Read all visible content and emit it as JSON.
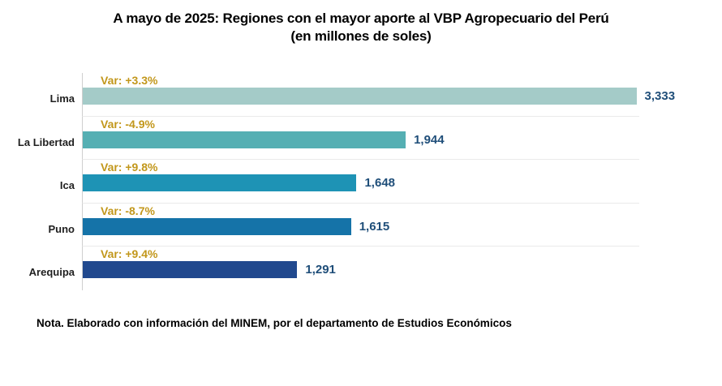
{
  "title": {
    "line1": "A mayo de 2025: Regiones con el mayor aporte al VBP Agropecuario del Perú",
    "line2": "(en millones de soles)"
  },
  "note": "Nota. Elaborado con información del MINEM, por el departamento de Estudios Económicos",
  "colors": {
    "variation_label": "#C2971B",
    "value_label": "#1F4E79",
    "category_label": "#1F1F1F",
    "axis_line": "#CFCFCF",
    "gridline": "#EAEAEA",
    "background": "#FFFFFF"
  },
  "chart_data": {
    "type": "bar",
    "orientation": "horizontal",
    "title": "A mayo de 2025: Regiones con el mayor aporte al VBP Agropecuario del Perú (en millones de soles)",
    "xlabel": "",
    "ylabel": "",
    "unit": "millones de soles",
    "categories": [
      "Lima",
      "La Libertad",
      "Ica",
      "Puno",
      "Arequipa"
    ],
    "values": [
      3333,
      1944,
      1648,
      1615,
      1291
    ],
    "value_labels": [
      "3,333",
      "1,944",
      "1,648",
      "1,615",
      "1,291"
    ],
    "variation_labels": [
      "Var: +3.3%",
      "Var: -4.9%",
      "Var: +9.8%",
      "Var: -8.7%",
      "Var: +9.4%"
    ],
    "variations_pct": [
      3.3,
      -4.9,
      9.8,
      -8.7,
      9.4
    ],
    "bar_colors": [
      "#A4CBC8",
      "#55AFB3",
      "#1E93B5",
      "#1573A8",
      "#21498E"
    ],
    "xlim": [
      0,
      3350
    ],
    "grid": "light horizontal row separators, vertical category axis line on left",
    "legend": "none"
  }
}
